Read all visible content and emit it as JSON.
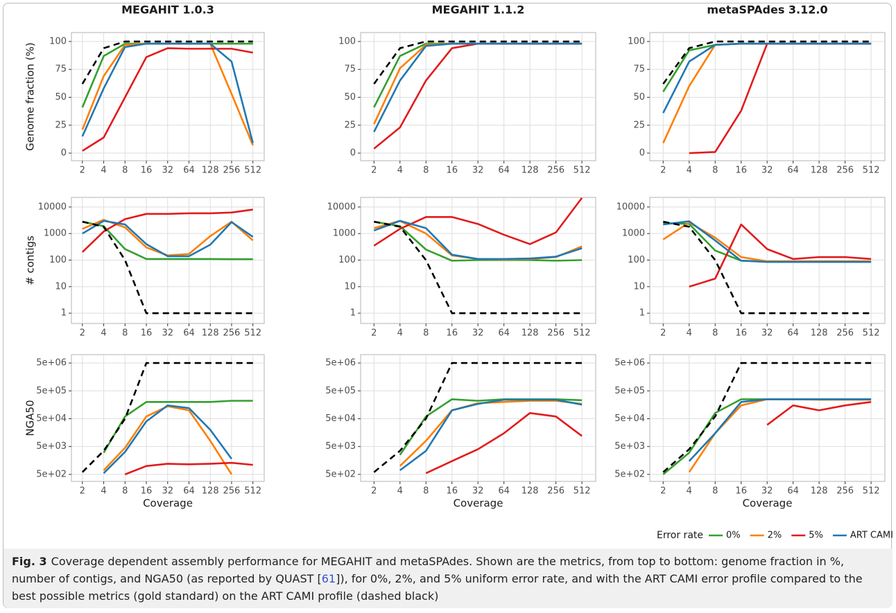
{
  "chart_data": [
    {
      "type": "line",
      "title": "MEGAHIT 1.0.3",
      "ylabel": "Genome fraction (%)",
      "x": [
        2,
        4,
        8,
        16,
        32,
        64,
        128,
        256,
        512
      ],
      "xscale": "log",
      "xlim": [
        1.4,
        740
      ],
      "xticks": [
        2,
        4,
        8,
        16,
        32,
        64,
        128,
        256,
        512
      ],
      "ylim": [
        -6.8,
        108
      ],
      "yticks": [
        0,
        25,
        50,
        75,
        100
      ],
      "grid": true,
      "series": [
        {
          "name": "0%",
          "color": "#33a02c",
          "values": [
            41,
            87,
            98,
            98,
            98,
            98,
            98,
            98,
            98
          ]
        },
        {
          "name": "2%",
          "color": "#ff7f00",
          "values": [
            21,
            69,
            97,
            98,
            98,
            98,
            98,
            53,
            7
          ]
        },
        {
          "name": "5%",
          "color": "#e31a1c",
          "values": [
            2,
            14,
            50,
            86,
            94,
            93.5,
            93.5,
            93.5,
            90
          ]
        },
        {
          "name": "ART CAMI",
          "color": "#1f78b4",
          "values": [
            15,
            58,
            95,
            98,
            98,
            98,
            98,
            82,
            9
          ]
        },
        {
          "color": "#000000",
          "dashed": true,
          "values": [
            62,
            94,
            100,
            100,
            100,
            100,
            100,
            100,
            100
          ]
        }
      ]
    },
    {
      "type": "line",
      "title": "MEGAHIT 1.1.2",
      "x": [
        2,
        4,
        8,
        16,
        32,
        64,
        128,
        256,
        512
      ],
      "xscale": "log",
      "xlim": [
        1.4,
        740
      ],
      "xticks": [
        2,
        4,
        8,
        16,
        32,
        64,
        128,
        256,
        512
      ],
      "ylim": [
        -6.8,
        108
      ],
      "yticks": [
        0,
        25,
        50,
        75,
        100
      ],
      "grid": true,
      "series": [
        {
          "name": "0%",
          "color": "#33a02c",
          "values": [
            41,
            87,
            98,
            98,
            98,
            98,
            98,
            98,
            98
          ]
        },
        {
          "name": "2%",
          "color": "#ff7f00",
          "values": [
            26,
            76,
            97,
            98,
            98,
            98,
            98,
            98,
            98
          ]
        },
        {
          "name": "5%",
          "color": "#e31a1c",
          "values": [
            4,
            23,
            65,
            94,
            98,
            98,
            98,
            98,
            98
          ]
        },
        {
          "name": "ART CAMI",
          "color": "#1f78b4",
          "values": [
            19,
            65,
            96,
            98,
            98,
            98,
            98,
            98,
            98
          ]
        },
        {
          "color": "#000000",
          "dashed": true,
          "values": [
            62,
            94,
            100,
            100,
            100,
            100,
            100,
            100,
            100
          ]
        }
      ]
    },
    {
      "type": "line",
      "title": "metaSPAdes 3.12.0",
      "x": [
        2,
        4,
        8,
        16,
        32,
        64,
        128,
        256,
        512
      ],
      "xscale": "log",
      "xlim": [
        1.4,
        740
      ],
      "xticks": [
        2,
        4,
        8,
        16,
        32,
        64,
        128,
        256,
        512
      ],
      "ylim": [
        -6.8,
        108
      ],
      "yticks": [
        0,
        25,
        50,
        75,
        100
      ],
      "grid": true,
      "series": [
        {
          "name": "0%",
          "color": "#33a02c",
          "values": [
            55,
            92,
            97,
            98,
            98,
            98,
            98,
            98,
            98
          ]
        },
        {
          "name": "2%",
          "color": "#ff7f00",
          "values": [
            9,
            60,
            97,
            98,
            98,
            98,
            98,
            98,
            98
          ]
        },
        {
          "name": "5%",
          "color": "#e31a1c",
          "values": [
            null,
            0,
            1,
            38,
            98,
            98,
            98,
            98,
            98
          ]
        },
        {
          "name": "ART CAMI",
          "color": "#1f78b4",
          "values": [
            36,
            82,
            97,
            98,
            98,
            98,
            98,
            98,
            98
          ]
        },
        {
          "color": "#000000",
          "dashed": true,
          "values": [
            62,
            94,
            100,
            100,
            100,
            100,
            100,
            100,
            100
          ]
        }
      ]
    },
    {
      "type": "line",
      "ylabel": "# contigs",
      "x": [
        2,
        4,
        8,
        16,
        32,
        64,
        128,
        256,
        512
      ],
      "xscale": "log",
      "xlim": [
        1.4,
        740
      ],
      "xticks": [
        2,
        4,
        8,
        16,
        32,
        64,
        128,
        256,
        512
      ],
      "yscale": "log",
      "ylim": [
        0.41,
        23000
      ],
      "yticks": [
        1,
        10,
        100,
        1000,
        10000
      ],
      "grid": true,
      "series": [
        {
          "name": "0%",
          "color": "#33a02c",
          "values": [
            2800,
            1900,
            260,
            110,
            110,
            110,
            110,
            108,
            108
          ]
        },
        {
          "name": "2%",
          "color": "#ff7f00",
          "values": [
            1500,
            3300,
            1700,
            300,
            150,
            170,
            800,
            2800,
            550
          ]
        },
        {
          "name": "5%",
          "color": "#e31a1c",
          "values": [
            200,
            1200,
            3500,
            5500,
            5500,
            5800,
            5800,
            6200,
            8000
          ]
        },
        {
          "name": "ART CAMI",
          "color": "#1f78b4",
          "values": [
            1000,
            3000,
            2200,
            400,
            140,
            140,
            380,
            2700,
            750
          ]
        },
        {
          "color": "#000000",
          "dashed": true,
          "values": [
            2800,
            1800,
            100,
            1,
            1,
            1,
            1,
            1,
            1
          ]
        }
      ]
    },
    {
      "type": "line",
      "x": [
        2,
        4,
        8,
        16,
        32,
        64,
        128,
        256,
        512
      ],
      "xscale": "log",
      "xlim": [
        1.4,
        740
      ],
      "xticks": [
        2,
        4,
        8,
        16,
        32,
        64,
        128,
        256,
        512
      ],
      "yscale": "log",
      "ylim": [
        0.41,
        23000
      ],
      "yticks": [
        1,
        10,
        100,
        1000,
        10000
      ],
      "grid": true,
      "series": [
        {
          "name": "0%",
          "color": "#33a02c",
          "values": [
            2800,
            1900,
            250,
            95,
            100,
            100,
            100,
            95,
            100
          ]
        },
        {
          "name": "2%",
          "color": "#ff7f00",
          "values": [
            1600,
            3000,
            1000,
            150,
            110,
            105,
            110,
            130,
            330
          ]
        },
        {
          "name": "5%",
          "color": "#e31a1c",
          "values": [
            350,
            1500,
            4200,
            4200,
            2300,
            900,
            400,
            1100,
            22000
          ]
        },
        {
          "name": "ART CAMI",
          "color": "#1f78b4",
          "values": [
            1300,
            3000,
            1600,
            160,
            110,
            110,
            115,
            135,
            280
          ]
        },
        {
          "color": "#000000",
          "dashed": true,
          "values": [
            2800,
            1800,
            100,
            1,
            1,
            1,
            1,
            1,
            1
          ]
        }
      ]
    },
    {
      "type": "line",
      "x": [
        2,
        4,
        8,
        16,
        32,
        64,
        128,
        256,
        512
      ],
      "xscale": "log",
      "xlim": [
        1.4,
        740
      ],
      "xticks": [
        2,
        4,
        8,
        16,
        32,
        64,
        128,
        256,
        512
      ],
      "yscale": "log",
      "ylim": [
        0.41,
        23000
      ],
      "yticks": [
        1,
        10,
        100,
        1000,
        10000
      ],
      "grid": true,
      "series": [
        {
          "name": "0%",
          "color": "#33a02c",
          "values": [
            2500,
            2300,
            230,
            95,
            90,
            85,
            85,
            85,
            85
          ]
        },
        {
          "name": "2%",
          "color": "#ff7f00",
          "values": [
            600,
            2600,
            700,
            130,
            90,
            90,
            90,
            90,
            90
          ]
        },
        {
          "name": "5%",
          "color": "#e31a1c",
          "values": [
            null,
            10,
            20,
            2200,
            260,
            110,
            130,
            130,
            110
          ]
        },
        {
          "name": "ART CAMI",
          "color": "#1f78b4",
          "values": [
            2200,
            2900,
            550,
            95,
            85,
            85,
            85,
            85,
            85
          ]
        },
        {
          "color": "#000000",
          "dashed": true,
          "values": [
            2800,
            1800,
            100,
            1,
            1,
            1,
            1,
            1,
            1
          ]
        }
      ]
    },
    {
      "type": "line",
      "ylabel": "NGA50",
      "xlabel": "Coverage",
      "x": [
        2,
        4,
        8,
        16,
        32,
        64,
        128,
        256,
        512
      ],
      "xscale": "log",
      "xlim": [
        1.4,
        740
      ],
      "xticks": [
        2,
        4,
        8,
        16,
        32,
        64,
        128,
        256,
        512
      ],
      "yscale": "log",
      "ylim": [
        280,
        10000000
      ],
      "yticks": [
        {
          "value": 500,
          "label": "5e+02"
        },
        {
          "value": 5000,
          "label": "5e+03"
        },
        {
          "value": 50000,
          "label": "5e+04"
        },
        {
          "value": 500000,
          "label": "5e+05"
        },
        {
          "value": 5000000,
          "label": "5e+06"
        }
      ],
      "grid": true,
      "series": [
        {
          "name": "0%",
          "color": "#33a02c",
          "values": [
            null,
            3000,
            60000,
            200000,
            200000,
            200000,
            200000,
            220000,
            220000
          ]
        },
        {
          "name": "2%",
          "color": "#ff7f00",
          "values": [
            null,
            700,
            4500,
            60000,
            140000,
            100000,
            8000,
            500,
            null
          ]
        },
        {
          "name": "5%",
          "color": "#e31a1c",
          "values": [
            null,
            null,
            500,
            1000,
            1200,
            1150,
            1200,
            1300,
            1100
          ]
        },
        {
          "name": "ART CAMI",
          "color": "#1f78b4",
          "values": [
            null,
            550,
            3200,
            40000,
            150000,
            120000,
            20000,
            1800,
            null
          ]
        },
        {
          "color": "#000000",
          "dashed": true,
          "values": [
            600,
            3500,
            50000,
            5000000,
            5000000,
            5000000,
            5000000,
            5000000,
            5000000
          ]
        }
      ]
    },
    {
      "type": "line",
      "xlabel": "Coverage",
      "x": [
        2,
        4,
        8,
        16,
        32,
        64,
        128,
        256,
        512
      ],
      "xscale": "log",
      "xlim": [
        1.4,
        740
      ],
      "xticks": [
        2,
        4,
        8,
        16,
        32,
        64,
        128,
        256,
        512
      ],
      "yscale": "log",
      "ylim": [
        280,
        10000000
      ],
      "yticks": [
        {
          "value": 500,
          "label": "5e+02"
        },
        {
          "value": 5000,
          "label": "5e+03"
        },
        {
          "value": 50000,
          "label": "5e+04"
        },
        {
          "value": 500000,
          "label": "5e+05"
        },
        {
          "value": 5000000,
          "label": "5e+06"
        }
      ],
      "grid": true,
      "series": [
        {
          "name": "0%",
          "color": "#33a02c",
          "values": [
            null,
            2500,
            60000,
            250000,
            220000,
            250000,
            250000,
            250000,
            230000
          ]
        },
        {
          "name": "2%",
          "color": "#ff7f00",
          "values": [
            null,
            1000,
            8000,
            100000,
            180000,
            200000,
            220000,
            220000,
            170000
          ]
        },
        {
          "name": "5%",
          "color": "#e31a1c",
          "values": [
            null,
            null,
            550,
            1500,
            4000,
            15000,
            80000,
            60000,
            12000
          ]
        },
        {
          "name": "ART CAMI",
          "color": "#1f78b4",
          "values": [
            null,
            700,
            3500,
            100000,
            170000,
            240000,
            240000,
            240000,
            160000
          ]
        },
        {
          "color": "#000000",
          "dashed": true,
          "values": [
            600,
            3500,
            50000,
            5000000,
            5000000,
            5000000,
            5000000,
            5000000,
            5000000
          ]
        }
      ]
    },
    {
      "type": "line",
      "xlabel": "Coverage",
      "x": [
        2,
        4,
        8,
        16,
        32,
        64,
        128,
        256,
        512
      ],
      "xscale": "log",
      "xlim": [
        1.4,
        740
      ],
      "xticks": [
        2,
        4,
        8,
        16,
        32,
        64,
        128,
        256,
        512
      ],
      "yscale": "log",
      "ylim": [
        280,
        10000000
      ],
      "yticks": [
        {
          "value": 500,
          "label": "5e+02"
        },
        {
          "value": 5000,
          "label": "5e+03"
        },
        {
          "value": 50000,
          "label": "5e+04"
        },
        {
          "value": 500000,
          "label": "5e+05"
        },
        {
          "value": 5000000,
          "label": "5e+06"
        }
      ],
      "grid": true,
      "series": [
        {
          "name": "0%",
          "color": "#33a02c",
          "values": [
            500,
            3000,
            80000,
            250000,
            250000,
            250000,
            250000,
            250000,
            250000
          ]
        },
        {
          "name": "2%",
          "color": "#ff7f00",
          "values": [
            null,
            600,
            15000,
            150000,
            250000,
            250000,
            240000,
            240000,
            240000
          ]
        },
        {
          "name": "5%",
          "color": "#e31a1c",
          "values": [
            null,
            null,
            null,
            null,
            30000,
            150000,
            100000,
            150000,
            200000
          ]
        },
        {
          "name": "ART CAMI",
          "color": "#1f78b4",
          "values": [
            null,
            1500,
            15000,
            200000,
            250000,
            250000,
            250000,
            250000,
            250000
          ]
        },
        {
          "color": "#000000",
          "dashed": true,
          "values": [
            600,
            4000,
            60000,
            5000000,
            5000000,
            5000000,
            5000000,
            5000000,
            5000000
          ]
        }
      ]
    }
  ],
  "legend": {
    "title": "Error rate"
  },
  "caption": {
    "label": "Fig. 3",
    "text_1": "Coverage dependent assembly performance for MEGAHIT and metaSPAdes. Shown are the metrics, from top to bottom: genome fraction in %, number of contigs, and NGA50 (as reported by QUAST [",
    "ref": "61",
    "text_2": "]), for 0%, 2%, and 5% uniform error rate, and with the ART CAMI error profile compared to the best possible metrics (gold standard) on the ART CAMI profile (dashed black)"
  }
}
